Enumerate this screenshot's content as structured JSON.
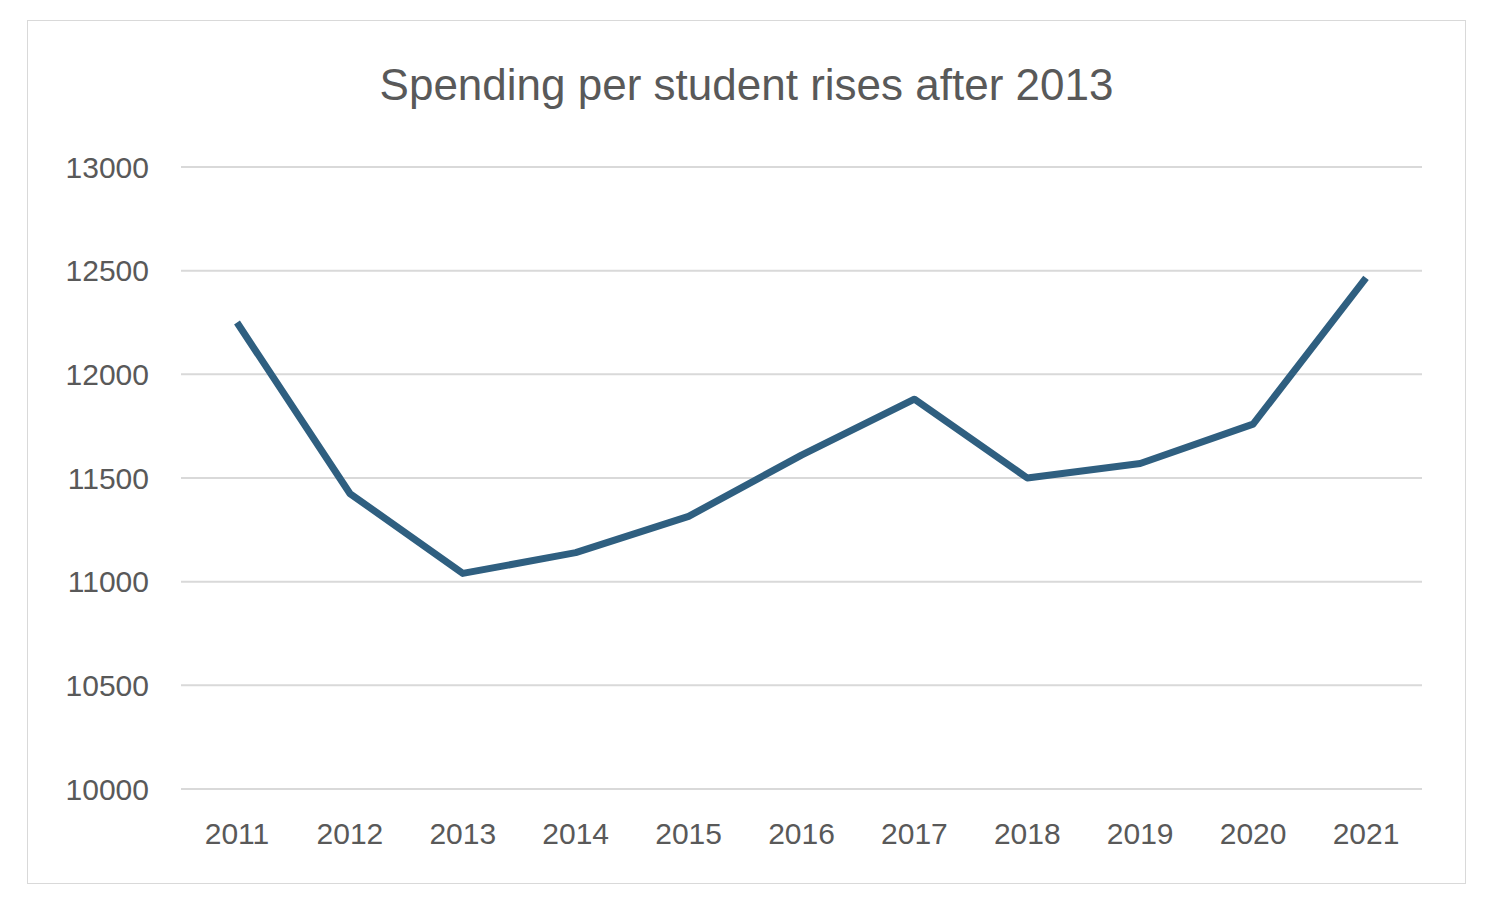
{
  "chart_data": {
    "type": "line",
    "title": "Spending per student rises after 2013",
    "categories": [
      "2011",
      "2012",
      "2013",
      "2014",
      "2015",
      "2016",
      "2017",
      "2018",
      "2019",
      "2020",
      "2021"
    ],
    "values": [
      12250,
      11425,
      11040,
      11140,
      11315,
      11610,
      11880,
      11500,
      11570,
      11760,
      12465
    ],
    "color": "#2f5f80",
    "ylim": [
      10000,
      13000
    ],
    "yticks": [
      10000,
      10500,
      11000,
      11500,
      12000,
      12500,
      13000
    ],
    "grid": true
  }
}
